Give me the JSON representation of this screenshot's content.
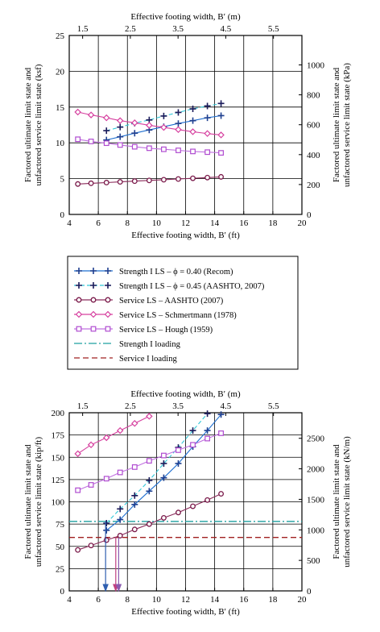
{
  "chart_data": [
    {
      "type": "line",
      "title": "",
      "xlabel": "Effective footing width, B′ (ft)",
      "x2label": "Effective footing width, B′ (m)",
      "ylabel_line1": "Factored ultimate limit state and",
      "ylabel_line2": "unfactored service limit state (ksf)",
      "y2label_line1": "Factored ultimate limit state and",
      "y2label_line2": "unfactored service limit state (kPa)",
      "xlim": [
        4,
        20
      ],
      "ylim": [
        0,
        25
      ],
      "x_ticks": [
        "4",
        "6",
        "8",
        "10",
        "12",
        "14",
        "16",
        "18",
        "20"
      ],
      "y_ticks": [
        "0",
        "5",
        "10",
        "15",
        "20",
        "25"
      ],
      "x2_ticks": [
        "1.5",
        "2.5",
        "3.5",
        "4.5",
        "5.5"
      ],
      "x2_tick_ft": [
        4.921,
        8.202,
        11.483,
        14.764,
        18.045
      ],
      "y2_ticks": [
        "0",
        "200",
        "400",
        "600",
        "800",
        "1000"
      ],
      "y2_tick_native": [
        0,
        4.177,
        8.354,
        12.531,
        16.708,
        20.885
      ],
      "grid": true,
      "series": [
        {
          "name": "Strength I LS – ϕ = 0.40 (Recom)",
          "x": [
            6.56,
            7.5,
            8.5,
            9.5,
            10.5,
            11.5,
            12.5,
            13.5,
            14.44
          ],
          "y": [
            10.4,
            10.85,
            11.35,
            11.8,
            12.25,
            12.7,
            13.1,
            13.5,
            13.8
          ]
        },
        {
          "name": "Strength I LS – ϕ = 0.45 (AASHTO, 2007)",
          "x": [
            6.56,
            7.5,
            8.5,
            9.5,
            10.5,
            11.5,
            12.5,
            13.5,
            14.44
          ],
          "y": [
            11.7,
            12.2,
            12.75,
            13.2,
            13.75,
            14.25,
            14.75,
            15.15,
            15.5
          ]
        },
        {
          "name": "Service LS – AASHTO (2007)",
          "x": [
            4.59,
            5.5,
            6.56,
            7.5,
            8.5,
            9.5,
            10.5,
            11.5,
            12.5,
            13.5,
            14.44
          ],
          "y": [
            4.25,
            4.35,
            4.45,
            4.55,
            4.65,
            4.75,
            4.85,
            4.95,
            5.05,
            5.15,
            5.25
          ]
        },
        {
          "name": "Service LS – Schmertmann (1978)",
          "x": [
            4.59,
            5.5,
            6.56,
            7.5,
            8.5,
            9.5,
            10.5,
            11.5,
            12.5,
            13.5,
            14.44
          ],
          "y": [
            14.3,
            13.9,
            13.5,
            13.1,
            12.8,
            12.45,
            12.15,
            11.85,
            11.55,
            11.3,
            11.1
          ]
        },
        {
          "name": "Service LS – Hough (1959)",
          "x": [
            4.59,
            5.5,
            6.56,
            7.5,
            8.5,
            9.5,
            10.5,
            11.5,
            12.5,
            13.5,
            14.44
          ],
          "y": [
            10.5,
            10.2,
            9.95,
            9.7,
            9.45,
            9.25,
            9.1,
            8.95,
            8.8,
            8.7,
            8.6
          ]
        },
        {
          "name": "Strength I loading",
          "x": [],
          "y": []
        },
        {
          "name": "Service I loading",
          "x": [],
          "y": []
        }
      ]
    },
    {
      "type": "line",
      "title": "",
      "xlabel": "Effective footing width, B′ (ft)",
      "x2label": "Effective footing width, B′ (m)",
      "ylabel_line1": "Factored ultimate limit state and",
      "ylabel_line2": "unfactored service limit state (kip/ft)",
      "y2label_line1": "Factored ultimate limit state and",
      "y2label_line2": "unfactored service limit state (kN/m)",
      "xlim": [
        4,
        20
      ],
      "ylim": [
        0,
        200
      ],
      "x_ticks": [
        "4",
        "6",
        "8",
        "10",
        "12",
        "14",
        "16",
        "18",
        "20"
      ],
      "y_ticks": [
        "0",
        "25",
        "50",
        "75",
        "100",
        "125",
        "150",
        "175",
        "200"
      ],
      "x2_ticks": [
        "1.5",
        "2.5",
        "3.5",
        "4.5",
        "5.5"
      ],
      "x2_tick_ft": [
        4.921,
        8.202,
        11.483,
        14.764,
        18.045
      ],
      "y2_ticks": [
        "0",
        "500",
        "1000",
        "1500",
        "2000",
        "2500"
      ],
      "y2_tick_native": [
        0,
        34.26,
        68.52,
        102.78,
        137.04,
        171.3
      ],
      "grid": true,
      "series": [
        {
          "name": "Strength I LS – ϕ = 0.40 (Recom)",
          "x": [
            6.56,
            7.5,
            8.5,
            9.5,
            10.5,
            11.5,
            12.5,
            13.5,
            14.44
          ],
          "y": [
            68,
            80,
            97,
            112,
            127,
            143,
            162,
            180,
            198
          ]
        },
        {
          "name": "Strength I LS – ϕ = 0.45 (AASHTO, 2007)",
          "x": [
            6.56,
            7.5,
            8.5,
            9.5,
            10.5,
            11.5,
            12.5,
            13.5
          ],
          "y": [
            76,
            92,
            107,
            124,
            143,
            161,
            180,
            199
          ]
        },
        {
          "name": "Service LS – AASHTO (2007)",
          "x": [
            4.59,
            5.5,
            6.56,
            7.5,
            8.5,
            9.5,
            10.5,
            11.5,
            12.5,
            13.5,
            14.44
          ],
          "y": [
            46,
            51,
            57,
            62,
            69,
            75,
            82,
            88,
            95,
            102,
            109
          ]
        },
        {
          "name": "Service LS – Schmertmann (1978)",
          "x": [
            4.59,
            5.5,
            6.56,
            7.5,
            8.5,
            9.5
          ],
          "y": [
            154,
            164,
            172,
            180,
            188,
            196
          ]
        },
        {
          "name": "Service LS – Hough (1959)",
          "x": [
            4.59,
            5.5,
            6.56,
            7.5,
            8.5,
            9.5,
            10.5,
            11.5,
            12.5,
            13.5,
            14.44
          ],
          "y": [
            113,
            119,
            126,
            133,
            139,
            146,
            152,
            158,
            164,
            171,
            177
          ]
        },
        {
          "name": "Strength I loading",
          "y_level": 78
        },
        {
          "name": "Service I loading",
          "y_level": 60
        }
      ],
      "intercepts_ft": [
        6.5,
        7.2,
        7.4
      ]
    }
  ],
  "colors": {
    "strength_040": "#1f3f8f",
    "strength_045": "#1a1a5a",
    "service_aashto": "#7a1a4a",
    "service_schmertmann": "#d6409f",
    "service_hough": "#b04cd0",
    "strength_loading": "#1f4f5a",
    "service_loading": "#8f3a3a",
    "strength_040_line": "#1f6fd0",
    "strength_045_line": "#30c8d8",
    "service_aashto_line": "#8a2a5a",
    "service_schmertmann_line": "#d6409f",
    "service_hough_line": "#c070e0",
    "arrow_blue": "#2f5fb0",
    "arrow_purple": "#8a5ab0",
    "arrow_pink": "#c04080",
    "strength_loading_line": "#1fa0a0",
    "service_loading_line": "#a02020"
  },
  "legend": {
    "items": [
      {
        "label": "Strength I LS – ϕ = 0.40 (Recom)",
        "marker": "plus",
        "color_key": "strength_040",
        "dash": false
      },
      {
        "label": "Strength I LS – ϕ = 0.45 (AASHTO, 2007)",
        "marker": "plus",
        "color_key": "strength_045",
        "dash": true
      },
      {
        "label": "Service LS – AASHTO (2007)",
        "marker": "circle",
        "color_key": "service_aashto",
        "dash": false
      },
      {
        "label": "Service LS – Schmertmann (1978)",
        "marker": "diamond",
        "color_key": "service_schmertmann",
        "dash": false
      },
      {
        "label": "Service LS – Hough (1959)",
        "marker": "square",
        "color_key": "service_hough",
        "dash": false
      },
      {
        "label": "Strength I loading",
        "marker": "none",
        "color_key": "strength_loading",
        "dash": "dashdot"
      },
      {
        "label": "Service I loading",
        "marker": "none",
        "color_key": "service_loading",
        "dash": "dash"
      }
    ]
  }
}
